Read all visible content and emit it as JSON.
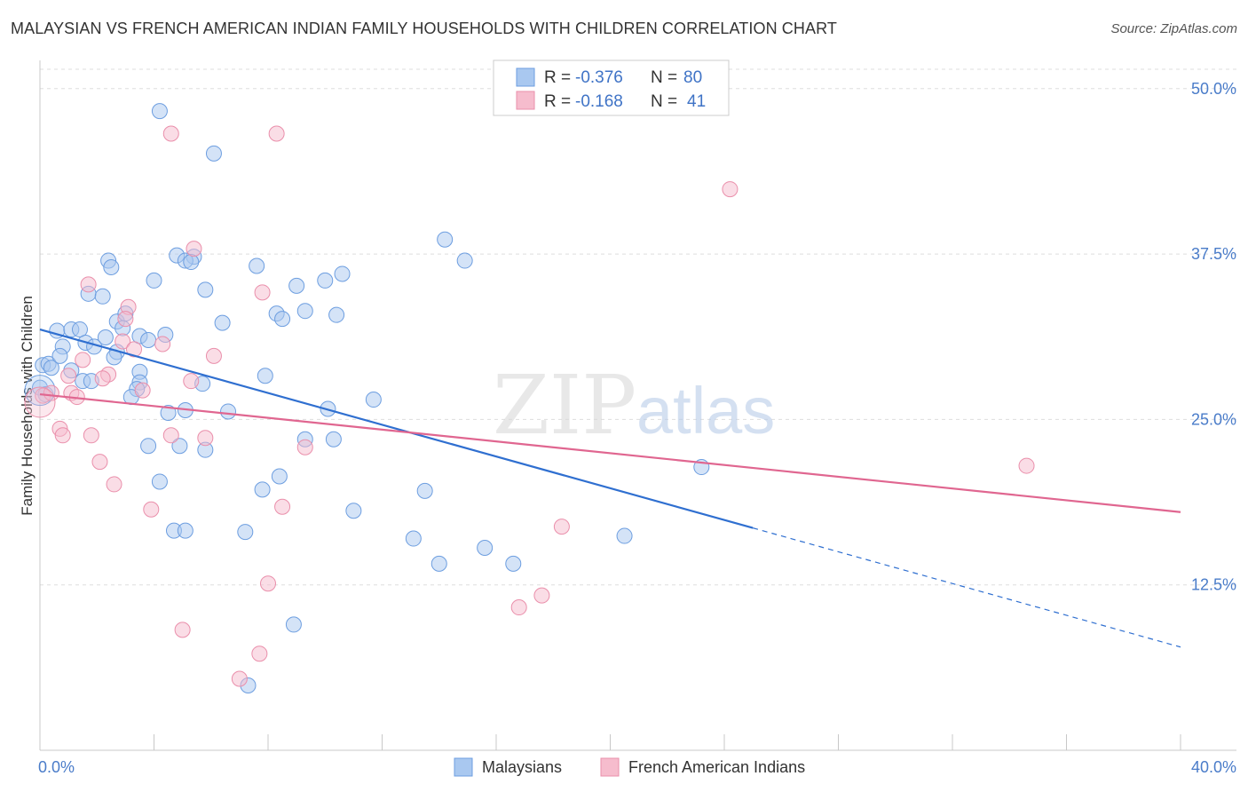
{
  "title": "MALAYSIAN VS FRENCH AMERICAN INDIAN FAMILY HOUSEHOLDS WITH CHILDREN CORRELATION CHART",
  "source": "Source: ZipAtlas.com",
  "watermark": {
    "zip": "ZIP",
    "atlas": "atlas"
  },
  "colors": {
    "blue_fill": "#a9c8f0",
    "blue_stroke": "#6d9ee0",
    "blue_line": "#2f6fd0",
    "pink_fill": "#f6bccd",
    "pink_stroke": "#ea8fab",
    "pink_line": "#e06690",
    "tick_text": "#4a7cc9",
    "grid": "#dddddd"
  },
  "legend": {
    "rows": [
      {
        "r_label": "R = ",
        "r_value": "-0.376",
        "n_label": "N = ",
        "n_value": "80"
      },
      {
        "r_label": "R = ",
        "r_value": "-0.168",
        "n_label": "N = ",
        "n_value": "41"
      }
    ]
  },
  "bottom_legend": [
    "Malaysians",
    "French American Indians"
  ],
  "chart_data": {
    "type": "scatter",
    "title": "MALAYSIAN VS FRENCH AMERICAN INDIAN FAMILY HOUSEHOLDS WITH CHILDREN CORRELATION CHART",
    "xlabel": "",
    "ylabel": "Family Households with Children",
    "xlim": [
      0,
      40
    ],
    "ylim": [
      0,
      52
    ],
    "x_tick_labels": [
      "0.0%",
      "40.0%"
    ],
    "y_ticks": [
      12.5,
      25.0,
      37.5,
      50.0
    ],
    "y_tick_labels": [
      "12.5%",
      "25.0%",
      "37.5%",
      "50.0%"
    ],
    "grid": true,
    "legend_position": "top-center",
    "series": [
      {
        "name": "Malaysians",
        "r": -0.376,
        "n": 80,
        "trend": {
          "x0": 0,
          "y0": 31.8,
          "x1": 25.0,
          "y1": 16.8,
          "dashed_to_x": 40,
          "dashed_to_y": 7.8
        },
        "points": [
          [
            4.2,
            48.3
          ],
          [
            6.1,
            45.1
          ],
          [
            2.4,
            37.0
          ],
          [
            2.5,
            36.5
          ],
          [
            4.8,
            37.4
          ],
          [
            5.4,
            37.3
          ],
          [
            5.1,
            37.0
          ],
          [
            5.3,
            36.9
          ],
          [
            7.6,
            36.6
          ],
          [
            10.6,
            36.0
          ],
          [
            9.0,
            35.1
          ],
          [
            4.0,
            35.5
          ],
          [
            1.7,
            34.5
          ],
          [
            2.2,
            34.3
          ],
          [
            5.8,
            34.8
          ],
          [
            14.2,
            38.6
          ],
          [
            14.9,
            37.0
          ],
          [
            10.0,
            35.5
          ],
          [
            2.7,
            32.4
          ],
          [
            3.0,
            33.0
          ],
          [
            6.4,
            32.3
          ],
          [
            8.3,
            33.0
          ],
          [
            8.5,
            32.6
          ],
          [
            9.3,
            33.2
          ],
          [
            10.4,
            32.9
          ],
          [
            0.6,
            31.7
          ],
          [
            1.1,
            31.8
          ],
          [
            1.4,
            31.8
          ],
          [
            2.3,
            31.2
          ],
          [
            2.9,
            31.9
          ],
          [
            3.5,
            31.3
          ],
          [
            4.4,
            31.4
          ],
          [
            0.8,
            30.5
          ],
          [
            1.6,
            30.8
          ],
          [
            1.9,
            30.5
          ],
          [
            2.7,
            30.1
          ],
          [
            3.8,
            31.0
          ],
          [
            2.6,
            29.7
          ],
          [
            0.1,
            29.1
          ],
          [
            0.3,
            29.2
          ],
          [
            0.4,
            28.9
          ],
          [
            0.7,
            29.8
          ],
          [
            1.1,
            28.7
          ],
          [
            1.5,
            27.9
          ],
          [
            1.8,
            27.9
          ],
          [
            3.5,
            28.6
          ],
          [
            3.5,
            27.8
          ],
          [
            3.4,
            27.3
          ],
          [
            5.7,
            27.7
          ],
          [
            7.9,
            28.3
          ],
          [
            0.0,
            27.4
          ],
          [
            0.2,
            26.9
          ],
          [
            3.2,
            26.7
          ],
          [
            11.7,
            26.5
          ],
          [
            4.5,
            25.5
          ],
          [
            5.1,
            25.7
          ],
          [
            6.6,
            25.6
          ],
          [
            10.1,
            25.8
          ],
          [
            3.8,
            23.0
          ],
          [
            4.9,
            23.0
          ],
          [
            5.8,
            22.7
          ],
          [
            9.3,
            23.5
          ],
          [
            10.3,
            23.5
          ],
          [
            4.2,
            20.3
          ],
          [
            8.4,
            20.7
          ],
          [
            7.8,
            19.7
          ],
          [
            13.5,
            19.6
          ],
          [
            11.0,
            18.1
          ],
          [
            4.7,
            16.6
          ],
          [
            5.1,
            16.6
          ],
          [
            7.2,
            16.5
          ],
          [
            13.1,
            16.0
          ],
          [
            14.0,
            14.1
          ],
          [
            15.6,
            15.3
          ],
          [
            16.6,
            14.1
          ],
          [
            20.5,
            16.2
          ],
          [
            23.2,
            21.4
          ],
          [
            8.9,
            9.5
          ],
          [
            7.3,
            4.9
          ],
          [
            0.0,
            27.2
          ]
        ]
      },
      {
        "name": "French American Indians",
        "r": -0.168,
        "n": 41,
        "trend": {
          "x0": 0,
          "y0": 26.9,
          "x1": 40,
          "y1": 18.0
        },
        "points": [
          [
            4.6,
            46.6
          ],
          [
            8.3,
            46.6
          ],
          [
            24.2,
            42.4
          ],
          [
            5.4,
            37.9
          ],
          [
            1.7,
            35.2
          ],
          [
            7.8,
            34.6
          ],
          [
            3.1,
            33.5
          ],
          [
            3.0,
            32.6
          ],
          [
            2.9,
            30.9
          ],
          [
            3.3,
            30.3
          ],
          [
            4.3,
            30.7
          ],
          [
            6.1,
            29.8
          ],
          [
            1.5,
            29.5
          ],
          [
            2.4,
            28.4
          ],
          [
            2.2,
            28.1
          ],
          [
            1.0,
            28.3
          ],
          [
            5.3,
            27.9
          ],
          [
            3.6,
            27.2
          ],
          [
            0.1,
            26.8
          ],
          [
            0.4,
            27.0
          ],
          [
            1.1,
            27.0
          ],
          [
            1.3,
            26.7
          ],
          [
            0.7,
            24.3
          ],
          [
            0.8,
            23.8
          ],
          [
            1.8,
            23.8
          ],
          [
            4.6,
            23.8
          ],
          [
            5.8,
            23.6
          ],
          [
            9.3,
            22.9
          ],
          [
            2.1,
            21.8
          ],
          [
            2.6,
            20.1
          ],
          [
            3.9,
            18.2
          ],
          [
            8.5,
            18.4
          ],
          [
            34.6,
            21.5
          ],
          [
            18.3,
            16.9
          ],
          [
            8.0,
            12.6
          ],
          [
            17.6,
            11.7
          ],
          [
            16.8,
            10.8
          ],
          [
            5.0,
            9.1
          ],
          [
            7.7,
            7.3
          ],
          [
            7.0,
            5.4
          ],
          [
            0.0,
            26.3
          ]
        ]
      }
    ]
  }
}
